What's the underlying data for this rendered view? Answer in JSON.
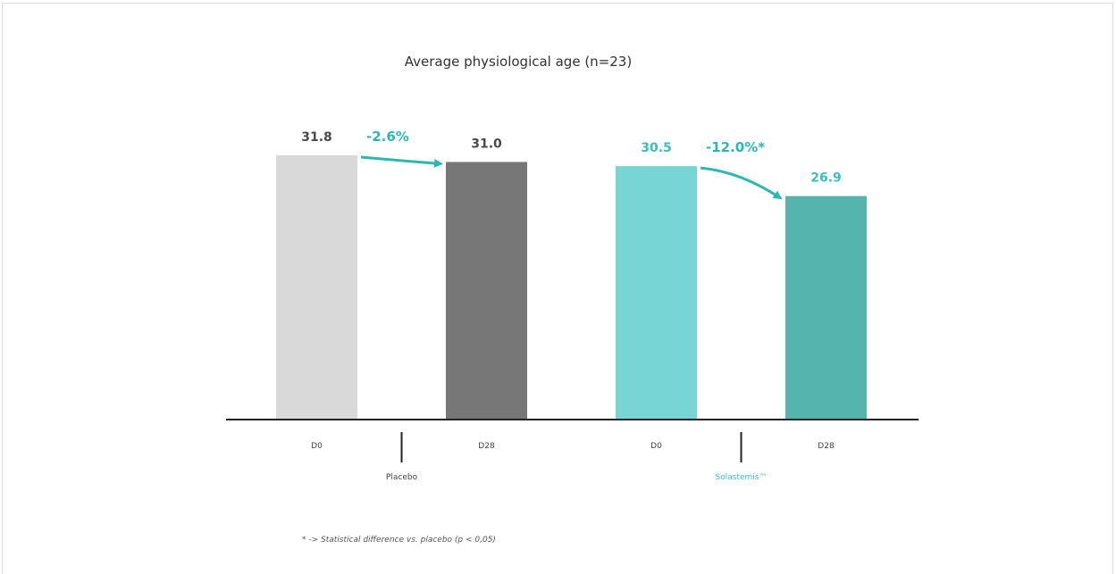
{
  "chart_data": {
    "type": "bar",
    "title": "Average physiological age (n=23)",
    "categories": [
      "D0",
      "D28",
      "D0",
      "D28"
    ],
    "groups": [
      {
        "name": "Placebo",
        "color": "#444444"
      },
      {
        "name": "Solastemis™",
        "color": "#3bbdbd"
      }
    ],
    "values": [
      31.8,
      31.0,
      30.5,
      26.9
    ],
    "value_labels": [
      "31.8",
      "31.0",
      "30.5",
      "26.9"
    ],
    "bar_colors": [
      "#d9d9d9",
      "#777777",
      "#77d5d6",
      "#55b5ae"
    ],
    "value_label_colors": [
      "#4a4a4a",
      "#4a4a4a",
      "#3bbdbd",
      "#3bbdbd"
    ],
    "changes": [
      {
        "label": "-2.6%",
        "from": 0,
        "to": 1
      },
      {
        "label": "-12.0%*",
        "from": 2,
        "to": 3
      }
    ],
    "change_color": "#2bb8b4",
    "ylim": [
      0,
      34
    ],
    "grid": false,
    "xlabel": "",
    "ylabel": "",
    "footnote": "* -> Statistical difference vs. placebo (p < 0,05)"
  }
}
